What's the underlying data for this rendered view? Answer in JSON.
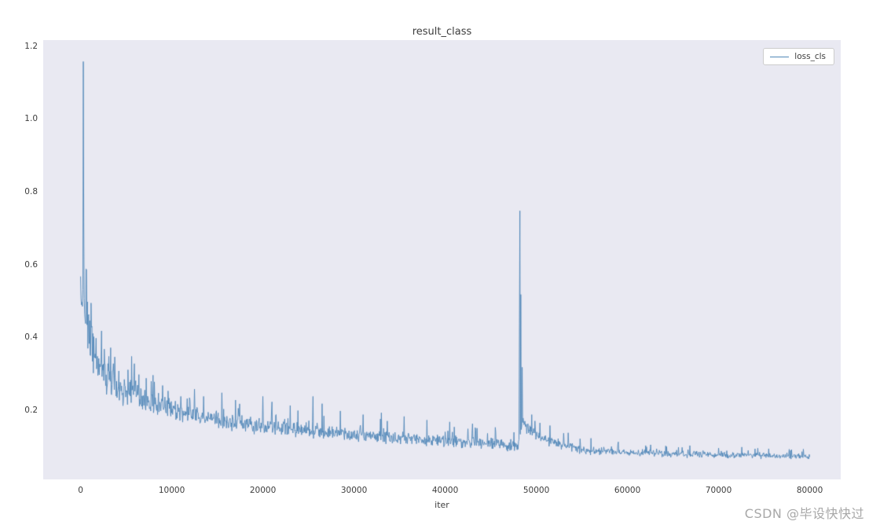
{
  "watermark": {
    "text": "CSDN @毕设快快过"
  },
  "colors": {
    "figure_bg": "#ffffff",
    "axes_bg": "#e9e9f2",
    "line": "#5087b8",
    "tick_label": "#3d3d3d",
    "title": "#3d3d3d",
    "legend_bg": "#ffffff",
    "legend_border": "#cccccc",
    "watermark": "#a8a8a8"
  },
  "chart_data": {
    "type": "line",
    "title": "result_class",
    "xlabel": "iter",
    "ylabel": "",
    "grid": false,
    "legend": {
      "position": "upper right",
      "entries": [
        "loss_cls"
      ]
    },
    "x_ticks": [
      0,
      10000,
      20000,
      30000,
      40000,
      50000,
      60000,
      70000,
      80000
    ],
    "y_ticks": [
      0.2,
      0.4,
      0.6,
      0.8,
      1.0,
      1.2
    ],
    "xlim": [
      -4100,
      83400
    ],
    "ylim": [
      0.012,
      1.219
    ],
    "series": [
      {
        "name": "loss_cls",
        "color": "#5087b8",
        "x_max": 80000,
        "sample_step": 50,
        "trend": [
          [
            0,
            0.55
          ],
          [
            500,
            0.46
          ],
          [
            1000,
            0.4
          ],
          [
            1500,
            0.36
          ],
          [
            2000,
            0.33
          ],
          [
            2500,
            0.31
          ],
          [
            3000,
            0.285
          ],
          [
            4000,
            0.265
          ],
          [
            5000,
            0.25
          ],
          [
            6000,
            0.255
          ],
          [
            7000,
            0.235
          ],
          [
            8000,
            0.225
          ],
          [
            9000,
            0.215
          ],
          [
            10000,
            0.205
          ],
          [
            12000,
            0.19
          ],
          [
            14000,
            0.18
          ],
          [
            16000,
            0.17
          ],
          [
            18000,
            0.165
          ],
          [
            20000,
            0.158
          ],
          [
            22000,
            0.152
          ],
          [
            24000,
            0.148
          ],
          [
            26000,
            0.144
          ],
          [
            28000,
            0.14
          ],
          [
            30000,
            0.136
          ],
          [
            32000,
            0.132
          ],
          [
            34000,
            0.128
          ],
          [
            36000,
            0.124
          ],
          [
            38000,
            0.121
          ],
          [
            40000,
            0.118
          ],
          [
            42000,
            0.114
          ],
          [
            44000,
            0.111
          ],
          [
            46000,
            0.108
          ],
          [
            48000,
            0.104
          ],
          [
            48500,
            0.17
          ],
          [
            49000,
            0.155
          ],
          [
            50000,
            0.135
          ],
          [
            51000,
            0.12
          ],
          [
            52000,
            0.112
          ],
          [
            54000,
            0.1
          ],
          [
            56000,
            0.092
          ],
          [
            58000,
            0.088
          ],
          [
            60000,
            0.086
          ],
          [
            64000,
            0.083
          ],
          [
            68000,
            0.081
          ],
          [
            72000,
            0.079
          ],
          [
            76000,
            0.077
          ],
          [
            80000,
            0.076
          ]
        ],
        "noise_envelope": [
          [
            0,
            0.09
          ],
          [
            1000,
            0.075
          ],
          [
            2000,
            0.06
          ],
          [
            3000,
            0.055
          ],
          [
            5000,
            0.045
          ],
          [
            8000,
            0.038
          ],
          [
            10000,
            0.032
          ],
          [
            15000,
            0.028
          ],
          [
            20000,
            0.026
          ],
          [
            25000,
            0.024
          ],
          [
            30000,
            0.022
          ],
          [
            35000,
            0.02
          ],
          [
            40000,
            0.019
          ],
          [
            46000,
            0.018
          ],
          [
            48000,
            0.02
          ],
          [
            50000,
            0.022
          ],
          [
            52000,
            0.018
          ],
          [
            56000,
            0.014
          ],
          [
            60000,
            0.012
          ],
          [
            70000,
            0.011
          ],
          [
            80000,
            0.01
          ]
        ],
        "spikes": [
          [
            300,
            1.16
          ],
          [
            350,
            0.72
          ],
          [
            600,
            0.59
          ],
          [
            750,
            0.5
          ],
          [
            900,
            0.465
          ],
          [
            1200,
            0.43
          ],
          [
            1700,
            0.4
          ],
          [
            2300,
            0.42
          ],
          [
            2600,
            0.37
          ],
          [
            3100,
            0.35
          ],
          [
            3600,
            0.33
          ],
          [
            4200,
            0.31
          ],
          [
            5600,
            0.35
          ],
          [
            5900,
            0.33
          ],
          [
            6400,
            0.3
          ],
          [
            7200,
            0.29
          ],
          [
            8100,
            0.28
          ],
          [
            9000,
            0.27
          ],
          [
            9600,
            0.255
          ],
          [
            11000,
            0.24
          ],
          [
            12500,
            0.26
          ],
          [
            13500,
            0.24
          ],
          [
            15500,
            0.25
          ],
          [
            17000,
            0.23
          ],
          [
            20000,
            0.24
          ],
          [
            21000,
            0.225
          ],
          [
            23000,
            0.215
          ],
          [
            25500,
            0.24
          ],
          [
            26500,
            0.22
          ],
          [
            28500,
            0.2
          ],
          [
            31000,
            0.19
          ],
          [
            33000,
            0.195
          ],
          [
            35500,
            0.185
          ],
          [
            38000,
            0.175
          ],
          [
            40500,
            0.17
          ],
          [
            43000,
            0.165
          ],
          [
            45500,
            0.155
          ],
          [
            48150,
            0.44
          ],
          [
            48200,
            0.75
          ],
          [
            48300,
            0.52
          ],
          [
            48450,
            0.32
          ],
          [
            49500,
            0.19
          ],
          [
            51500,
            0.16
          ],
          [
            53500,
            0.14
          ],
          [
            56000,
            0.125
          ],
          [
            59000,
            0.115
          ],
          [
            62000,
            0.105
          ],
          [
            66000,
            0.1
          ],
          [
            70000,
            0.098
          ],
          [
            74000,
            0.096
          ],
          [
            78000,
            0.094
          ]
        ]
      }
    ]
  }
}
